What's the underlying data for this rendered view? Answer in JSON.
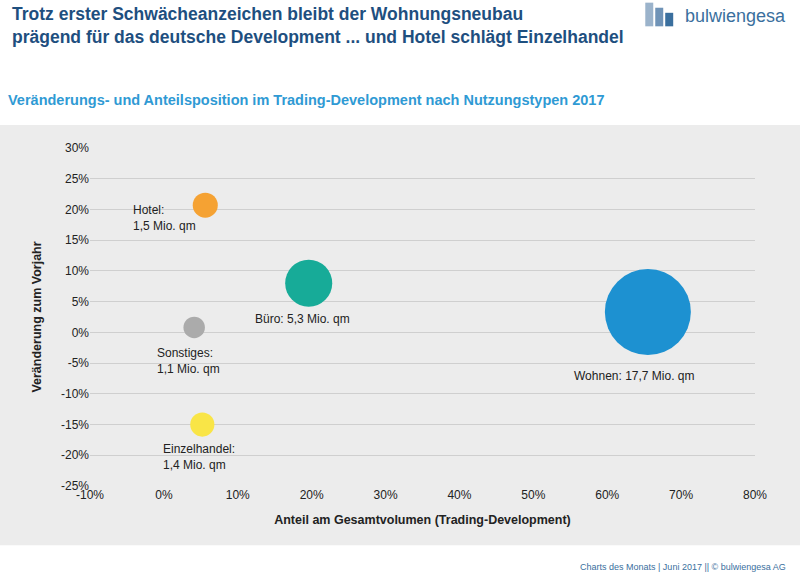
{
  "chart_data": {
    "type": "scatter",
    "title": "Trotz erster Schwächeanzeichen bleibt der Wohnungsneubau\nprägend für das deutsche Development ... und Hotel schlägt Einzelhandel",
    "subtitle": "Veränderungs- und Anteilsposition im Trading-Development nach Nutzungstypen 2017",
    "x_label": "Anteil am Gesamtvolumen (Trading-Development)",
    "y_label": "Veränderung zum Vorjahr",
    "logo": "bulwiengesa",
    "footer": "Charts des Monats | Juni 2017 || © bulwiengesa AG",
    "labels": [
      "Hotel:\n1,5 Mio. qm",
      "Büro: 5,3 Mio. qm",
      "Sonstiges:\n1,1 Mio. qm",
      "Einzelhandel:\n1,4 Mio. qm",
      "Wohnen: 17,7 Mio. qm"
    ],
    "x": [
      5.6,
      19.6,
      4.1,
      5.2,
      65.5
    ],
    "values": [
      20.7,
      8.0,
      0.8,
      -15.0,
      3.3
    ],
    "sizes": [
      1.5,
      5.3,
      1.1,
      1.4,
      17.7
    ],
    "colors": [
      "#f5a233",
      "#17ab98",
      "#ababab",
      "#f9e547",
      "#1d91d1"
    ],
    "marker": "circle",
    "grid": "y",
    "xlim": [
      -10,
      80
    ],
    "xticks": [
      {
        "value": -10,
        "label": "-10%"
      },
      {
        "value": 0,
        "label": "0%"
      },
      {
        "value": 10,
        "label": "10%"
      },
      {
        "value": 20,
        "label": "20%"
      },
      {
        "value": 30,
        "label": "30%"
      },
      {
        "value": 40,
        "label": "40%"
      },
      {
        "value": 50,
        "label": "50%"
      },
      {
        "value": 60,
        "label": "60%"
      },
      {
        "value": 70,
        "label": "70%"
      },
      {
        "value": 80,
        "label": "80%"
      }
    ],
    "ylim": [
      -25,
      30
    ],
    "yticks": [
      {
        "value": -25,
        "label": "-25%"
      },
      {
        "value": -20,
        "label": "-20%"
      },
      {
        "value": -15,
        "label": "-15%"
      },
      {
        "value": -10,
        "label": "-10%"
      },
      {
        "value": -5,
        "label": "-5%"
      },
      {
        "value": 0,
        "label": "0%"
      },
      {
        "value": 5,
        "label": "5%"
      },
      {
        "value": 10,
        "label": "10%"
      },
      {
        "value": 15,
        "label": "15%"
      },
      {
        "value": 20,
        "label": "20%"
      },
      {
        "value": 25,
        "label": "25%"
      },
      {
        "value": 30,
        "label": "30%"
      }
    ]
  }
}
